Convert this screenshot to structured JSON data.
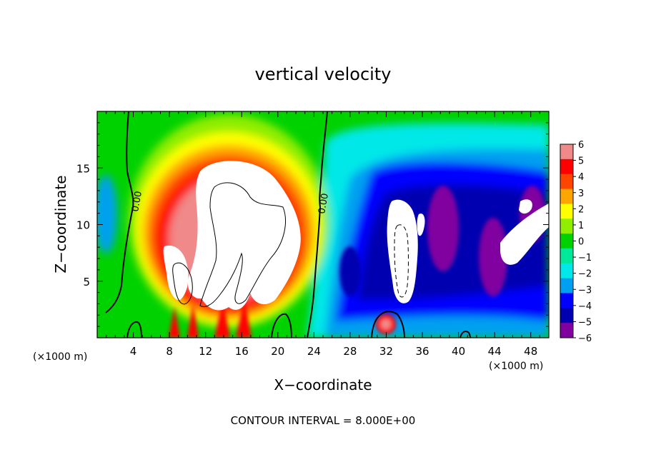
{
  "chart_data": {
    "type": "heatmap",
    "title": "vertical velocity",
    "xlabel": "X−coordinate",
    "ylabel": "Z−coordinate",
    "x_unit_left": "(×1000 m)",
    "x_unit_right": "(×1000 m)",
    "footer": "CONTOUR INTERVAL = 8.000E+00",
    "xlim": [
      0,
      50
    ],
    "ylim": [
      0,
      20
    ],
    "x_ticks": [
      4,
      8,
      12,
      16,
      20,
      24,
      28,
      32,
      36,
      40,
      44,
      48
    ],
    "x_tick_labels": [
      "4",
      "8",
      "12",
      "16",
      "20",
      "24",
      "28",
      "32",
      "36",
      "40",
      "44",
      "48"
    ],
    "y_ticks": [
      5,
      10,
      15
    ],
    "y_tick_labels": [
      "5",
      "10",
      "15"
    ],
    "colorbar": {
      "levels": [
        6,
        5,
        4,
        3,
        2,
        1,
        0,
        -1,
        -2,
        -3,
        -4,
        -5,
        -6
      ],
      "labels": [
        "6",
        "5",
        "4",
        "3",
        "2",
        "1",
        "0",
        "−1",
        "−2",
        "−3",
        "−4",
        "−5",
        "−6"
      ],
      "colors": [
        "#f08a8a",
        "#ff0000",
        "#ff4500",
        "#ffa500",
        "#ffff00",
        "#90ee00",
        "#00d200",
        "#00e89a",
        "#00e8e8",
        "#00a0f0",
        "#0000ff",
        "#0000b0",
        "#8000a0"
      ]
    },
    "contour_labels": [
      {
        "text": "0.00",
        "x": 3.8,
        "z": 12.2
      },
      {
        "text": "0.00",
        "x": 24.5,
        "z": 12.2
      }
    ],
    "features": [
      {
        "kind": "updraft",
        "center_x": 15.5,
        "center_z": 10.5,
        "peak": 8.0
      },
      {
        "kind": "downdraft",
        "center_x": 33.5,
        "center_z": 8.5,
        "peak": -8.0
      },
      {
        "kind": "downdraft",
        "center_x": 46,
        "center_z": 9,
        "peak": -7.0
      },
      {
        "kind": "updraft_cell",
        "center_x": 32,
        "center_z": 1.2,
        "peak": 6.0
      }
    ]
  }
}
